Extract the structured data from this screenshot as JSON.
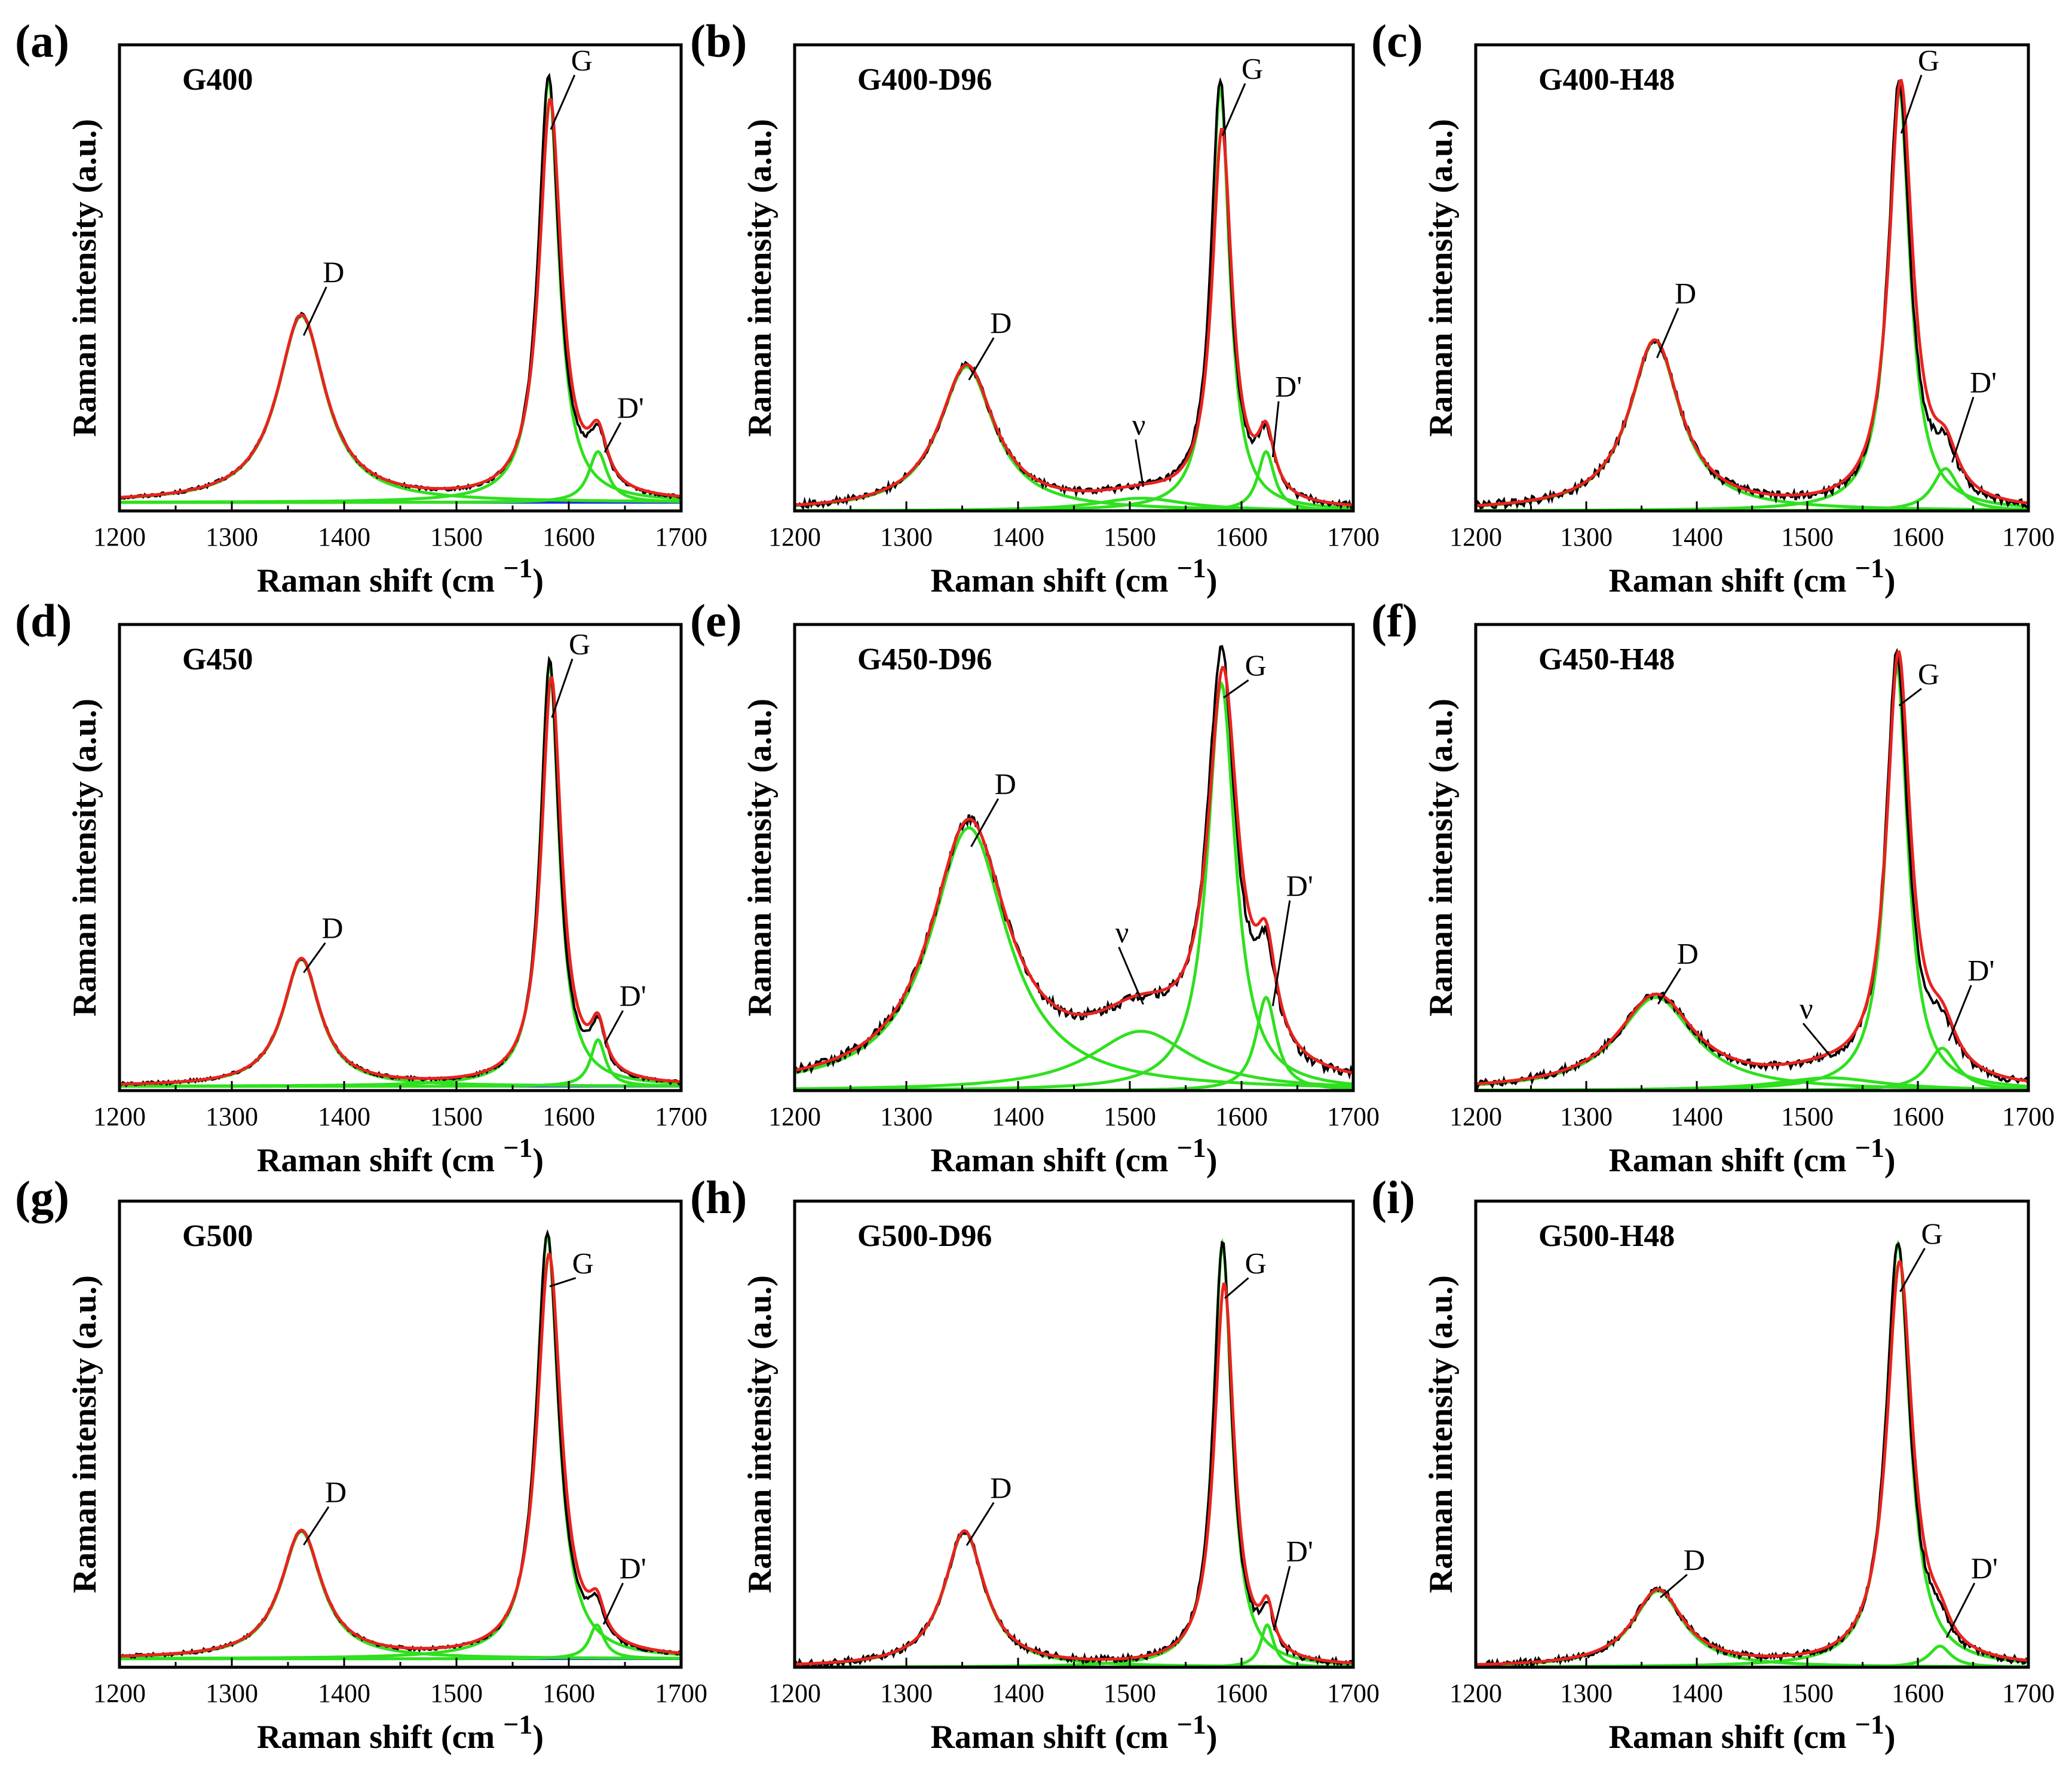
{
  "figure": {
    "description": "Raman spectra with peak deconvolution for nine samples"
  },
  "colors": {
    "experimental": "#000000",
    "fit_total": "#e8231f",
    "fit_component": "#2fe01f",
    "baseline": "#1a2fe0",
    "frame": "#000000"
  },
  "chart_data": [
    {
      "type": "line",
      "panel": "(a)",
      "title": "G400",
      "xlabel": "Raman shift (cm",
      "xlabel_sup": "−1",
      "xlabel_close": ")",
      "ylabel": "Raman intensity (a.u.)",
      "xlim": [
        1200,
        1700
      ],
      "ylim": [
        0,
        1.1
      ],
      "xticks": [
        1200,
        1300,
        1400,
        1500,
        1600,
        1700
      ],
      "base": 0.02,
      "peaks": [
        {
          "label": "D",
          "center": 1362,
          "hwhm": 26,
          "height": 0.44
        },
        {
          "label": "G",
          "center": 1582,
          "hwhm": 11,
          "height": 1.0
        },
        {
          "label": "D'",
          "center": 1626,
          "hwhm": 10,
          "height": 0.12
        }
      ],
      "peak_labels": [
        {
          "text": "D",
          "x": 1381,
          "y": 0.54
        },
        {
          "text": "G",
          "x": 1602,
          "y": 1.04
        },
        {
          "text": "D'",
          "x": 1643,
          "y": 0.22
        }
      ],
      "noise": 0.004,
      "fit_drop": 0.06
    },
    {
      "type": "line",
      "panel": "(b)",
      "title": "G400-D96",
      "xlabel": "Raman shift (cm",
      "xlabel_sup": "−1",
      "xlabel_close": ")",
      "ylabel": "Raman intensity (a.u.)",
      "xlim": [
        1200,
        1700
      ],
      "ylim": [
        0,
        1.1
      ],
      "xticks": [
        1200,
        1300,
        1400,
        1500,
        1600,
        1700
      ],
      "base": 0.0,
      "peaks": [
        {
          "label": "D",
          "center": 1354,
          "hwhm": 30,
          "height": 0.34
        },
        {
          "label": "ν",
          "center": 1510,
          "hwhm": 50,
          "height": 0.03
        },
        {
          "label": "G",
          "center": 1581,
          "hwhm": 10,
          "height": 1.0
        },
        {
          "label": "D'",
          "center": 1622,
          "hwhm": 9,
          "height": 0.14
        }
      ],
      "peak_labels": [
        {
          "text": "D",
          "x": 1375,
          "y": 0.42
        },
        {
          "text": "ν",
          "x": 1502,
          "y": 0.18
        },
        {
          "text": "G",
          "x": 1600,
          "y": 1.02
        },
        {
          "text": "D'",
          "x": 1630,
          "y": 0.27
        }
      ],
      "noise": 0.008,
      "fit_drop": 0.12
    },
    {
      "type": "line",
      "panel": "(c)",
      "title": "G400-H48",
      "xlabel": "Raman shift (cm",
      "xlabel_sup": "−1",
      "xlabel_close": ")",
      "ylabel": "Raman intensity (a.u.)",
      "xlim": [
        1200,
        1700
      ],
      "ylim": [
        0,
        1.1
      ],
      "xticks": [
        1200,
        1300,
        1400,
        1500,
        1600,
        1700
      ],
      "base": 0.0,
      "peaks": [
        {
          "label": "D",
          "center": 1362,
          "hwhm": 28,
          "height": 0.4
        },
        {
          "label": "G",
          "center": 1583,
          "hwhm": 12,
          "height": 1.0
        },
        {
          "label": "D'",
          "center": 1625,
          "hwhm": 14,
          "height": 0.1
        }
      ],
      "peak_labels": [
        {
          "text": "D",
          "x": 1380,
          "y": 0.49
        },
        {
          "text": "G",
          "x": 1600,
          "y": 1.04
        },
        {
          "text": "D'",
          "x": 1647,
          "y": 0.28
        }
      ],
      "noise": 0.01,
      "fit_drop": 0.0
    },
    {
      "type": "line",
      "panel": "(d)",
      "title": "G450",
      "xlabel": "Raman shift (cm",
      "xlabel_sup": "−1",
      "xlabel_close": ")",
      "ylabel": "Raman intensity (a.u.)",
      "xlim": [
        1200,
        1700
      ],
      "ylim": [
        0,
        1.1
      ],
      "xticks": [
        1200,
        1300,
        1400,
        1500,
        1600,
        1700
      ],
      "base": 0.01,
      "peaks": [
        {
          "label": "D",
          "center": 1362,
          "hwhm": 20,
          "height": 0.3
        },
        {
          "label": "G",
          "center": 1583,
          "hwhm": 10,
          "height": 1.0
        },
        {
          "label": "D'",
          "center": 1626,
          "hwhm": 8,
          "height": 0.11
        }
      ],
      "peak_labels": [
        {
          "text": "D",
          "x": 1380,
          "y": 0.36
        },
        {
          "text": "G",
          "x": 1600,
          "y": 1.03
        },
        {
          "text": "D'",
          "x": 1645,
          "y": 0.2
        }
      ],
      "noise": 0.004,
      "fit_drop": 0.04
    },
    {
      "type": "line",
      "panel": "(e)",
      "title": "G450-D96",
      "xlabel": "Raman shift (cm",
      "xlabel_sup": "−1",
      "xlabel_close": ")",
      "ylabel": "Raman intensity (a.u.)",
      "xlim": [
        1200,
        1700
      ],
      "ylim": [
        0,
        1.1
      ],
      "xticks": [
        1200,
        1300,
        1400,
        1500,
        1600,
        1700
      ],
      "base": 0.0,
      "peaks": [
        {
          "label": "D",
          "center": 1356,
          "hwhm": 42,
          "height": 0.62
        },
        {
          "label": "ν",
          "center": 1510,
          "hwhm": 55,
          "height": 0.14
        },
        {
          "label": "G",
          "center": 1582,
          "hwhm": 15,
          "height": 0.96
        },
        {
          "label": "D'",
          "center": 1622,
          "hwhm": 11,
          "height": 0.22
        }
      ],
      "peak_labels": [
        {
          "text": "D",
          "x": 1379,
          "y": 0.7
        },
        {
          "text": "ν",
          "x": 1487,
          "y": 0.35
        },
        {
          "text": "G",
          "x": 1603,
          "y": 0.98
        },
        {
          "text": "D'",
          "x": 1640,
          "y": 0.46
        }
      ],
      "noise": 0.012,
      "fit_drop": 0.05
    },
    {
      "type": "line",
      "panel": "(f)",
      "title": "G450-H48",
      "xlabel": "Raman shift (cm",
      "xlabel_sup": "−1",
      "xlabel_close": ")",
      "ylabel": "Raman intensity (a.u.)",
      "xlim": [
        1200,
        1700
      ],
      "ylim": [
        0,
        1.1
      ],
      "xticks": [
        1200,
        1300,
        1400,
        1500,
        1600,
        1700
      ],
      "base": 0.0,
      "peaks": [
        {
          "label": "D",
          "center": 1363,
          "hwhm": 42,
          "height": 0.22
        },
        {
          "label": "ν",
          "center": 1520,
          "hwhm": 60,
          "height": 0.03
        },
        {
          "label": "G",
          "center": 1581,
          "hwhm": 12,
          "height": 1.0
        },
        {
          "label": "D'",
          "center": 1622,
          "hwhm": 16,
          "height": 0.1
        }
      ],
      "peak_labels": [
        {
          "text": "D",
          "x": 1382,
          "y": 0.3
        },
        {
          "text": "ν",
          "x": 1493,
          "y": 0.17
        },
        {
          "text": "G",
          "x": 1600,
          "y": 0.96
        },
        {
          "text": "D'",
          "x": 1645,
          "y": 0.26
        }
      ],
      "noise": 0.009,
      "fit_drop": 0.0
    },
    {
      "type": "line",
      "panel": "(g)",
      "title": "G500",
      "xlabel": "Raman shift (cm",
      "xlabel_sup": "−1",
      "xlabel_close": ")",
      "ylabel": "Raman intensity (a.u.)",
      "xlim": [
        1200,
        1700
      ],
      "ylim": [
        0,
        1.1
      ],
      "xticks": [
        1200,
        1300,
        1400,
        1500,
        1600,
        1700
      ],
      "base": 0.02,
      "peaks": [
        {
          "label": "D",
          "center": 1362,
          "hwhm": 22,
          "height": 0.3
        },
        {
          "label": "G",
          "center": 1581,
          "hwhm": 12,
          "height": 1.0
        },
        {
          "label": "D'",
          "center": 1625,
          "hwhm": 8,
          "height": 0.08
        }
      ],
      "peak_labels": [
        {
          "text": "D",
          "x": 1383,
          "y": 0.39
        },
        {
          "text": "G",
          "x": 1603,
          "y": 0.93
        },
        {
          "text": "D'",
          "x": 1645,
          "y": 0.21
        }
      ],
      "noise": 0.004,
      "fit_drop": 0.05
    },
    {
      "type": "line",
      "panel": "(h)",
      "title": "G500-D96",
      "xlabel": "Raman shift (cm",
      "xlabel_sup": "−1",
      "xlabel_close": ")",
      "ylabel": "Raman intensity (a.u.)",
      "xlim": [
        1200,
        1700
      ],
      "ylim": [
        0,
        1.1
      ],
      "xticks": [
        1200,
        1300,
        1400,
        1500,
        1600,
        1700
      ],
      "base": 0.0,
      "peaks": [
        {
          "label": "D",
          "center": 1352,
          "hwhm": 22,
          "height": 0.32
        },
        {
          "label": "G",
          "center": 1583,
          "hwhm": 10,
          "height": 1.0
        },
        {
          "label": "D'",
          "center": 1623,
          "hwhm": 7,
          "height": 0.1
        }
      ],
      "peak_labels": [
        {
          "text": "D",
          "x": 1375,
          "y": 0.4
        },
        {
          "text": "G",
          "x": 1603,
          "y": 0.93
        },
        {
          "text": "D'",
          "x": 1640,
          "y": 0.25
        }
      ],
      "noise": 0.008,
      "fit_drop": 0.1
    },
    {
      "type": "line",
      "panel": "(i)",
      "title": "G500-H48",
      "xlabel": "Raman shift (cm",
      "xlabel_sup": "−1",
      "xlabel_close": ")",
      "ylabel": "Raman intensity (a.u.)",
      "xlim": [
        1200,
        1700
      ],
      "ylim": [
        0,
        1.1
      ],
      "xticks": [
        1200,
        1300,
        1400,
        1500,
        1600,
        1700
      ],
      "base": 0.0,
      "peaks": [
        {
          "label": "D",
          "center": 1365,
          "hwhm": 28,
          "height": 0.18
        },
        {
          "label": "G",
          "center": 1582,
          "hwhm": 13,
          "height": 1.0
        },
        {
          "label": "D'",
          "center": 1620,
          "hwhm": 12,
          "height": 0.05
        }
      ],
      "peak_labels": [
        {
          "text": "D",
          "x": 1388,
          "y": 0.23
        },
        {
          "text": "G",
          "x": 1603,
          "y": 1.0
        },
        {
          "text": "D'",
          "x": 1648,
          "y": 0.21
        }
      ],
      "noise": 0.008,
      "fit_drop": 0.05
    }
  ]
}
